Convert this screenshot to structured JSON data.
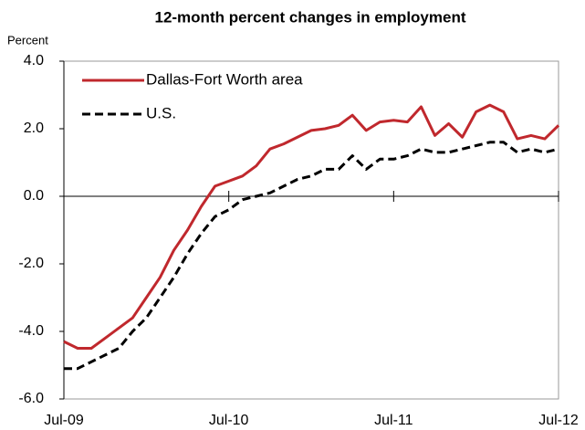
{
  "chart_data": {
    "type": "line",
    "title": "12-month percent changes in employment",
    "y_label": "Percent",
    "categories": [
      "Jul-09",
      null,
      null,
      null,
      null,
      null,
      null,
      null,
      null,
      null,
      null,
      null,
      "Jul-10",
      null,
      null,
      null,
      null,
      null,
      null,
      null,
      null,
      null,
      null,
      null,
      "Jul-11",
      null,
      null,
      null,
      null,
      null,
      null,
      null,
      null,
      null,
      null,
      null,
      "Jul-12"
    ],
    "series": [
      {
        "name": "Dallas-Fort Worth area",
        "color": "#c0282d",
        "style": "solid",
        "values": [
          -4.3,
          -4.5,
          -4.5,
          -4.2,
          -3.9,
          -3.6,
          -3.0,
          -2.4,
          -1.6,
          -1.0,
          -0.3,
          0.3,
          0.45,
          0.6,
          0.9,
          1.4,
          1.55,
          1.75,
          1.95,
          2.0,
          2.1,
          2.4,
          1.95,
          2.2,
          2.25,
          2.2,
          2.65,
          1.8,
          2.15,
          1.75,
          2.5,
          2.7,
          2.5,
          1.7,
          1.8,
          1.7,
          2.1
        ]
      },
      {
        "name": "U.S.",
        "color": "#000000",
        "style": "dashed",
        "values": [
          -5.1,
          -5.1,
          -4.9,
          -4.7,
          -4.5,
          -4.0,
          -3.6,
          -3.0,
          -2.4,
          -1.7,
          -1.1,
          -0.6,
          -0.4,
          -0.1,
          0.0,
          0.1,
          0.3,
          0.5,
          0.6,
          0.8,
          0.8,
          1.2,
          0.8,
          1.1,
          1.1,
          1.2,
          1.4,
          1.3,
          1.3,
          1.4,
          1.5,
          1.6,
          1.6,
          1.3,
          1.4,
          1.3,
          1.4
        ]
      }
    ],
    "ylim": [
      -6,
      4
    ],
    "yticks": [
      {
        "value": -6,
        "label": "-6.0"
      },
      {
        "value": -4,
        "label": "-4.0"
      },
      {
        "value": -2,
        "label": "-2.0"
      },
      {
        "value": 0,
        "label": "0.0"
      },
      {
        "value": 2,
        "label": "2.0"
      },
      {
        "value": 4,
        "label": "4.0"
      }
    ],
    "legend": "upper left",
    "grid": false
  }
}
